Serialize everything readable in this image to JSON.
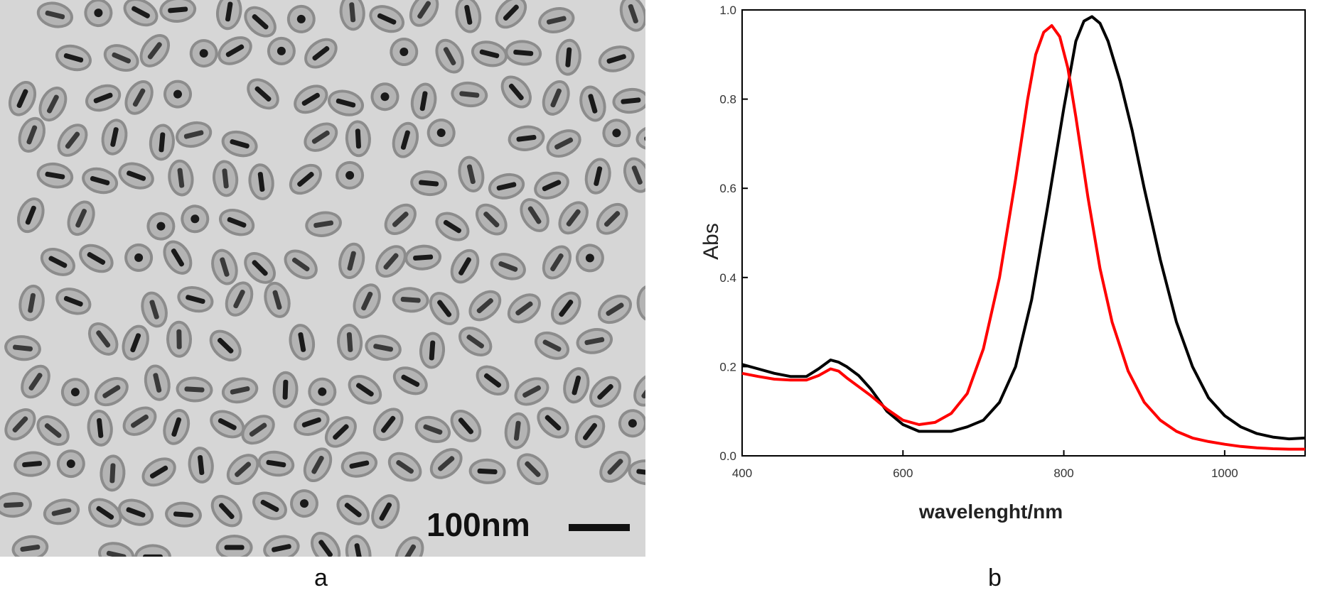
{
  "panel_a": {
    "label": "a",
    "scale_bar_text": "100nm"
  },
  "panel_b": {
    "label": "b"
  },
  "chart_data": {
    "type": "line",
    "title": "",
    "xlabel": "wavelenght/nm",
    "ylabel": "Abs",
    "xlim": [
      400,
      1100
    ],
    "ylim": [
      0,
      1.0
    ],
    "xticks": [
      400,
      600,
      800,
      1000
    ],
    "yticks": [
      0.0,
      0.2,
      0.4,
      0.6,
      0.8,
      1.0
    ],
    "grid": false,
    "legend": "none",
    "series": [
      {
        "color": "#000000",
        "x": [
          400,
          420,
          440,
          460,
          480,
          495,
          510,
          520,
          530,
          545,
          560,
          580,
          600,
          620,
          640,
          660,
          680,
          700,
          720,
          740,
          760,
          780,
          800,
          815,
          825,
          835,
          845,
          855,
          870,
          885,
          900,
          920,
          940,
          960,
          980,
          1000,
          1020,
          1040,
          1060,
          1080,
          1100
        ],
        "y": [
          0.205,
          0.195,
          0.185,
          0.178,
          0.178,
          0.195,
          0.215,
          0.21,
          0.2,
          0.18,
          0.15,
          0.1,
          0.07,
          0.055,
          0.055,
          0.055,
          0.065,
          0.08,
          0.12,
          0.2,
          0.35,
          0.56,
          0.78,
          0.93,
          0.975,
          0.985,
          0.97,
          0.93,
          0.84,
          0.73,
          0.6,
          0.44,
          0.3,
          0.2,
          0.13,
          0.09,
          0.065,
          0.05,
          0.042,
          0.038,
          0.04
        ]
      },
      {
        "color": "#ff0000",
        "x": [
          400,
          420,
          440,
          460,
          480,
          495,
          510,
          520,
          530,
          545,
          560,
          580,
          600,
          620,
          640,
          660,
          680,
          700,
          720,
          740,
          755,
          765,
          775,
          785,
          795,
          805,
          815,
          830,
          845,
          860,
          880,
          900,
          920,
          940,
          960,
          980,
          1000,
          1020,
          1040,
          1060,
          1080,
          1100
        ],
        "y": [
          0.185,
          0.178,
          0.172,
          0.17,
          0.17,
          0.18,
          0.195,
          0.19,
          0.175,
          0.155,
          0.135,
          0.105,
          0.08,
          0.07,
          0.075,
          0.095,
          0.14,
          0.24,
          0.4,
          0.62,
          0.8,
          0.9,
          0.95,
          0.965,
          0.94,
          0.87,
          0.76,
          0.58,
          0.42,
          0.3,
          0.19,
          0.12,
          0.08,
          0.055,
          0.04,
          0.032,
          0.026,
          0.021,
          0.018,
          0.016,
          0.015,
          0.015
        ]
      }
    ]
  }
}
